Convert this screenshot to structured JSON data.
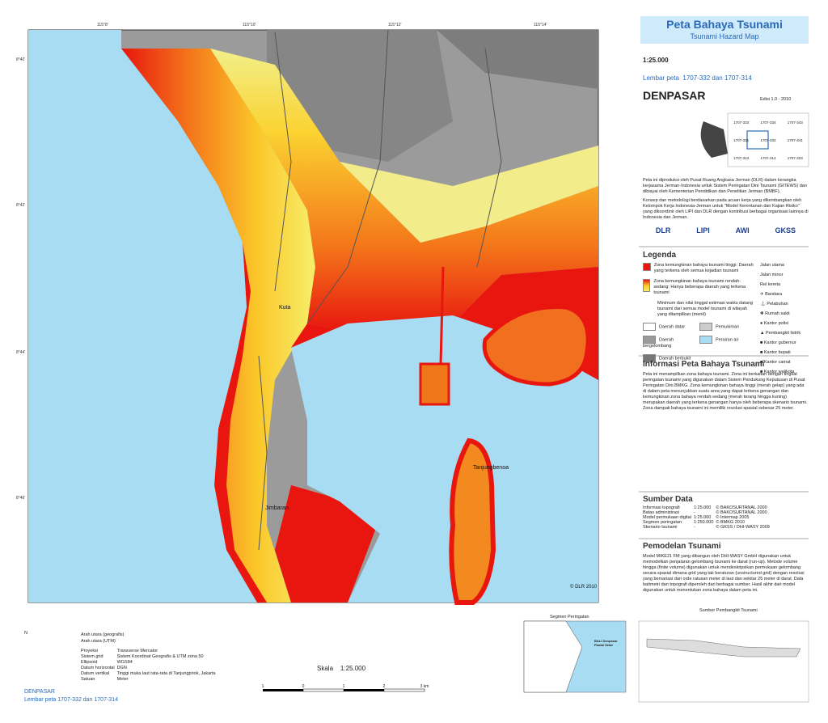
{
  "header": {
    "title": "Peta Bahaya Tsunami",
    "subtitle": "Tsunami Hazard Map"
  },
  "scale": "1:25.000",
  "sheet": {
    "label": "Lembar peta",
    "numbers": "1707-332 dan 1707-314"
  },
  "place": "DENPASAR",
  "edition": "Edisi 1.0  -  2010",
  "index": [
    "1707-333",
    "1707-334",
    "1707-343",
    "1707-331",
    "1707-332",
    "1707-341",
    "1707-313",
    "1707-314",
    "1707-323"
  ],
  "intro": [
    "Peta ini diproduksi oleh Pusat Ruang Angkasa Jerman (DLR) dalam kerangka kerjasama Jerman-Indonesia untuk Sistem Peringatan Dini Tsunami (GITEWS) dan dibiayai oleh Kementerian Pendidikan dan Penelitian Jerman (BMBF).",
    "Konsep dan metodologi berdasarkan pada acuan kerja yang dikembangkan oleh Kelompok Kerja Indonesia-Jerman untuk \"Model Kerentanan dan Kajian Risiko\" yang dikoordinir oleh LIPI dan DLR dengan kontribusi berbagai organisasi lainnya di Indonesia dan Jerman."
  ],
  "logos": [
    "DLR",
    "LIPI",
    "AWI",
    "GKSS"
  ],
  "legend": {
    "title": "Legenda",
    "hazard": [
      "Zona kemungkinan bahaya tsunami tinggi: Daerah yang terkena oleh semua kejadian tsunami",
      "Zona kemungkinan bahaya tsunami rendah-sedang: Hanya beberapa daerah yang terkena tsunami"
    ],
    "eta": "Minimum dan nilai tinggal estimasi waktu datang tsunami dari semua model tsunami di wilayah yang ditampilkan (menit)",
    "terrain": [
      "Daerah datar",
      "Pemukiman",
      "Daerah bergelombang",
      "Perairan air",
      "Daerah berbukit"
    ],
    "lines": [
      "Jalan utama",
      "Jalan minor",
      "Rel kereta"
    ],
    "symbols": [
      "Bandara",
      "Pelabuhan",
      "Rumah sakit",
      "Kantor polisi",
      "Pembangkit listrik",
      "Kantor gubernur",
      "Kantor bupati",
      "Kantor camat",
      "Kantor walikota"
    ]
  },
  "info": {
    "title": "Informasi Peta Bahaya Tsunami",
    "text": "Peta ini menampilkan zona bahaya tsunami. Zona ini berkaitan dengan tingkat peringatan tsunami yang digunakan dalam Sistem Pendukung Keputusan di Pusat Peringatan Dini BMKG. Zona kemungkinan bahaya tinggi (merah gelap) yang ada di dalam peta menunjukkan suatu area yang dapat terkena genangan dan kemungkinan zona bahaya rendah-sedang (merah terang hingga kuning) merupakan daerah yang terkena genangan hanya oleh beberapa skenario tsunami. Zona dampak bahaya tsunami ini memiliki resolusi spasial sebesar 25 meter."
  },
  "sources": {
    "title": "Sumber Data",
    "rows": [
      [
        "Informasi topografi",
        "1:25.000",
        "© BAKOSURTANAL 2000"
      ],
      [
        "Batas administrasi",
        "-",
        "© BAKOSURTANAL 2000"
      ],
      [
        "Model permukaan digital",
        "1:25.000",
        "© Intermap 2005"
      ],
      [
        "Segmen peringatan",
        "1:250.000",
        "© BMKG 2010"
      ],
      [
        "Skenario tsunami",
        "-",
        "© GKSS / DHI-WASY 2009"
      ]
    ]
  },
  "modelling": {
    "title": "Pemodelan Tsunami",
    "text": "Model MIKE21 FM yang dibangun oleh DHI-WASY GmbH digunakan untuk memodelkan penjalaran gelombang tsunami ke darat (run-up). Metode volume hingga (finite volume) digunakan untuk mendeskripsikan permukaan gelombang secara spasial dimana grid yang tak beraturan (unstructured grid) dengan resolusi yang bervariasi dari orde ratusan meter di laut dan sekitar 25 meter di darat. Data batimetri dan topografi diperoleh dari berbagai sumber. Hasil akhir dari model digunakan untuk menentukan zona bahaya dalam peta ini."
  },
  "map": {
    "places": [
      "Kuta",
      "Tanjungbenoa",
      "Jimbaran"
    ],
    "copyright": "© DLR 2010",
    "lon": [
      "115°8'",
      "115°10'",
      "115°12'",
      "115°14'"
    ],
    "lat": [
      "8°40'",
      "8°42'",
      "8°44'",
      "8°46'"
    ]
  },
  "bottom": {
    "north": [
      "N",
      "Arah utara (geografis)",
      "Arah utara (UTM)"
    ],
    "meta": [
      [
        "Proyeksi",
        "Transverse Mercator"
      ],
      [
        "Sistem grid",
        "Sistem Koordinat Geografis & UTM zona 50"
      ],
      [
        "Ellipsoid",
        "WGS84"
      ],
      [
        "Datum horizontal",
        "DGN"
      ],
      [
        "Datum vertikal",
        "Tinggi muka laut rata-rata di Tanjungpriok, Jakarta"
      ],
      [
        "Satuan",
        "Meter"
      ]
    ],
    "scale_label": "Skala",
    "scale": "1:25.000",
    "scalebar": [
      "1",
      "0",
      "1",
      "2",
      "3 km"
    ],
    "place": "DENPASAR",
    "sheet": "Lembar peta  1707-332 dan 1707-314",
    "segment_title": "Segmen Peringatan",
    "segment_label": "BALI Denpasar Pantai Selat",
    "source_title": "Sumber Pembangkit Tsunami"
  }
}
